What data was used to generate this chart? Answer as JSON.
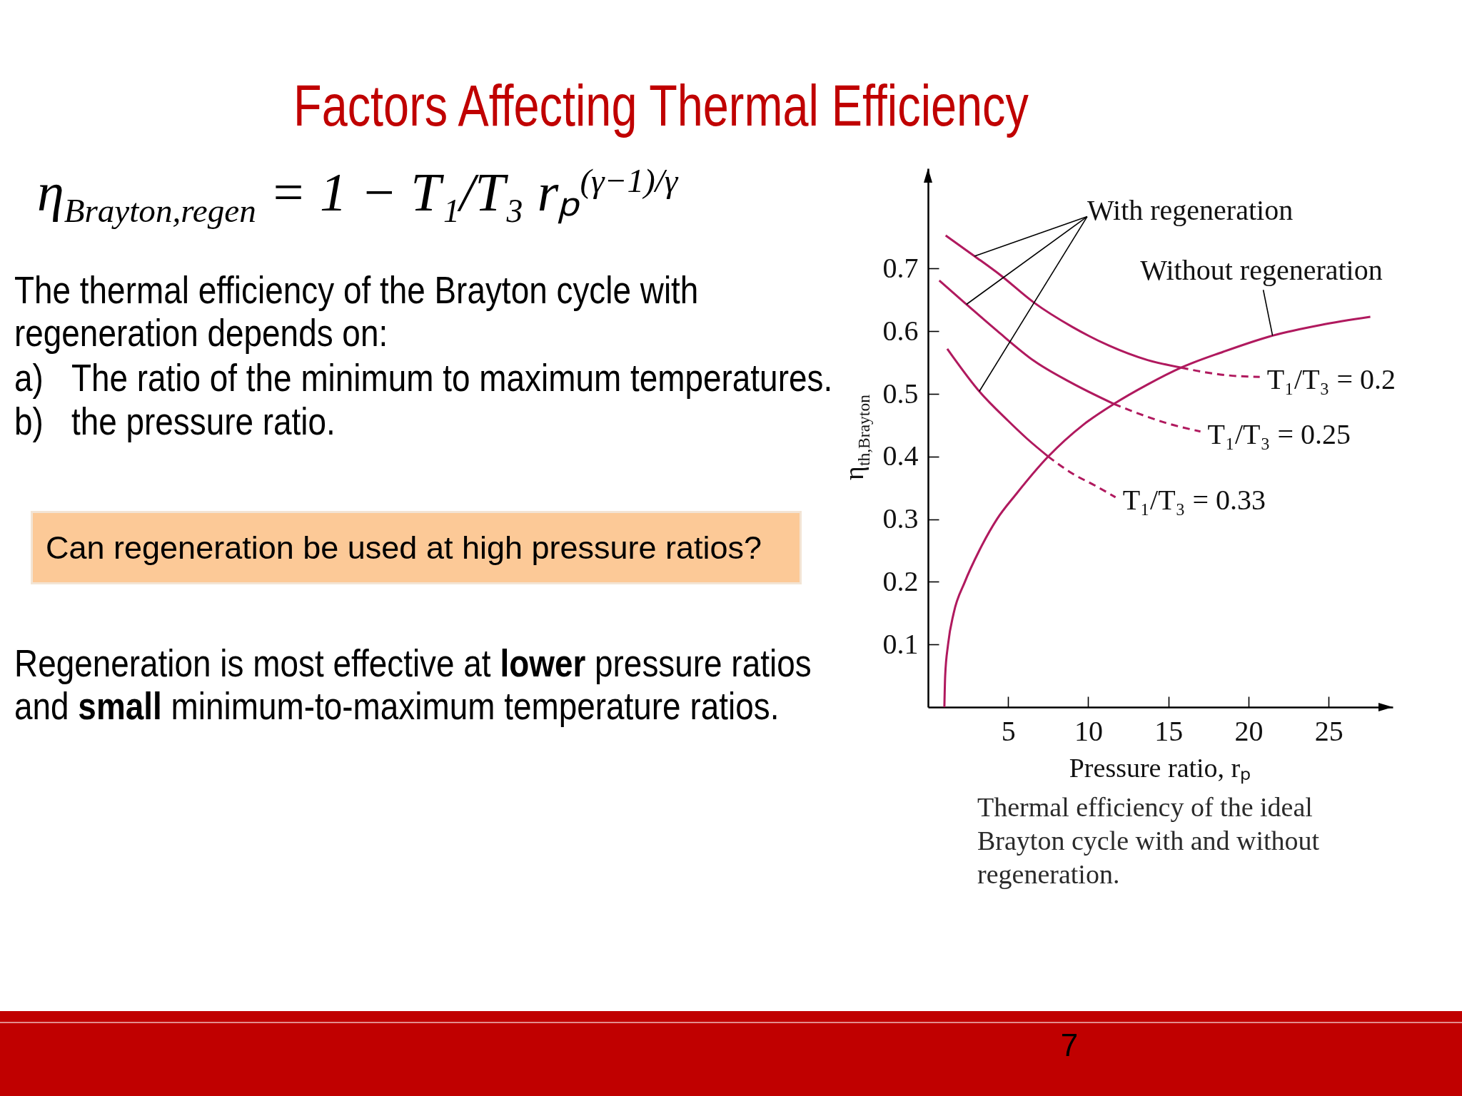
{
  "chart_data": {
    "type": "line",
    "title": "Factors Affecting Thermal Efficiency",
    "xlabel": "Pressure ratio, rₚ",
    "ylabel": "η$_{th,Brayton}$",
    "xlim": [
      0,
      29
    ],
    "ylim": [
      0,
      0.86
    ],
    "xticks": [
      5,
      10,
      15,
      20,
      25
    ],
    "yticks": [
      0.1,
      0.2,
      0.3,
      0.4,
      0.5,
      0.6,
      0.7
    ],
    "series": [
      {
        "color": "#b0195e",
        "x": [
          1.1,
          2.9,
          4.5,
          6.6,
          9.0,
          11.3,
          13.7,
          15.8
        ],
        "values": [
          0.753,
          0.72,
          0.69,
          0.646,
          0.607,
          0.577,
          0.554,
          0.542
        ]
      },
      {
        "name": "T₁/T₃ = 0.2",
        "color": "#b0195e",
        "line_style": "dashed",
        "x": [
          15.8,
          17.2,
          18.6,
          20.7
        ],
        "values": [
          0.542,
          0.535,
          0.53,
          0.527
        ]
      },
      {
        "color": "#b0195e",
        "x": [
          0.7,
          2.4,
          4.3,
          6.6,
          9.0,
          11.6
        ],
        "values": [
          0.681,
          0.643,
          0.601,
          0.553,
          0.517,
          0.484
        ]
      },
      {
        "name": "T₁/T₃ = 0.25",
        "color": "#b0195e",
        "line_style": "dashed",
        "x": [
          11.6,
          13.2,
          14.8,
          17.0
        ],
        "values": [
          0.484,
          0.468,
          0.454,
          0.44
        ]
      },
      {
        "color": "#b0195e",
        "x": [
          1.2,
          3.2,
          5.0,
          6.2,
          7.5
        ],
        "values": [
          0.572,
          0.504,
          0.457,
          0.428,
          0.4
        ]
      },
      {
        "name": "T₁/T₃ = 0.33",
        "color": "#b0195e",
        "line_style": "dashed",
        "x": [
          7.5,
          9.0,
          10.4,
          11.7
        ],
        "values": [
          0.4,
          0.373,
          0.354,
          0.335
        ]
      },
      {
        "name": "Without regeneration",
        "color": "#b0195e",
        "x": [
          1.02,
          1.07,
          1.25,
          1.6,
          2.3,
          3.2,
          4.3,
          5.5,
          7.5,
          9.7,
          11.6,
          13.7,
          15.8,
          18.4,
          21.5,
          24.5,
          27.6
        ],
        "values": [
          0,
          0.05,
          0.1,
          0.15,
          0.2,
          0.25,
          0.3,
          0.34,
          0.4,
          0.451,
          0.484,
          0.515,
          0.542,
          0.567,
          0.593,
          0.61,
          0.623
        ]
      }
    ],
    "annotations": [
      "η$_{Brayton,regen}$ = 1 − T₁/T₃ rₚ$^{(γ−1)/γ}$",
      "The thermal efficiency of the Brayton cycle with regeneration depends on:",
      "a) The ratio of the minimum to maximum temperatures.",
      "b) the pressure ratio.",
      "Can regeneration be used at high pressure ratios?",
      "Regeneration is most effective at",
      "lower",
      "pressure ratios",
      "and",
      "small",
      "minimum-to-maximum temperature ratios.",
      "Thermal efficiency of the ideal Brayton cycle with and without regeneration.",
      "7",
      {
        "text": "With regeneration",
        "x": 2.9,
        "y": 0.72
      }
    ]
  }
}
